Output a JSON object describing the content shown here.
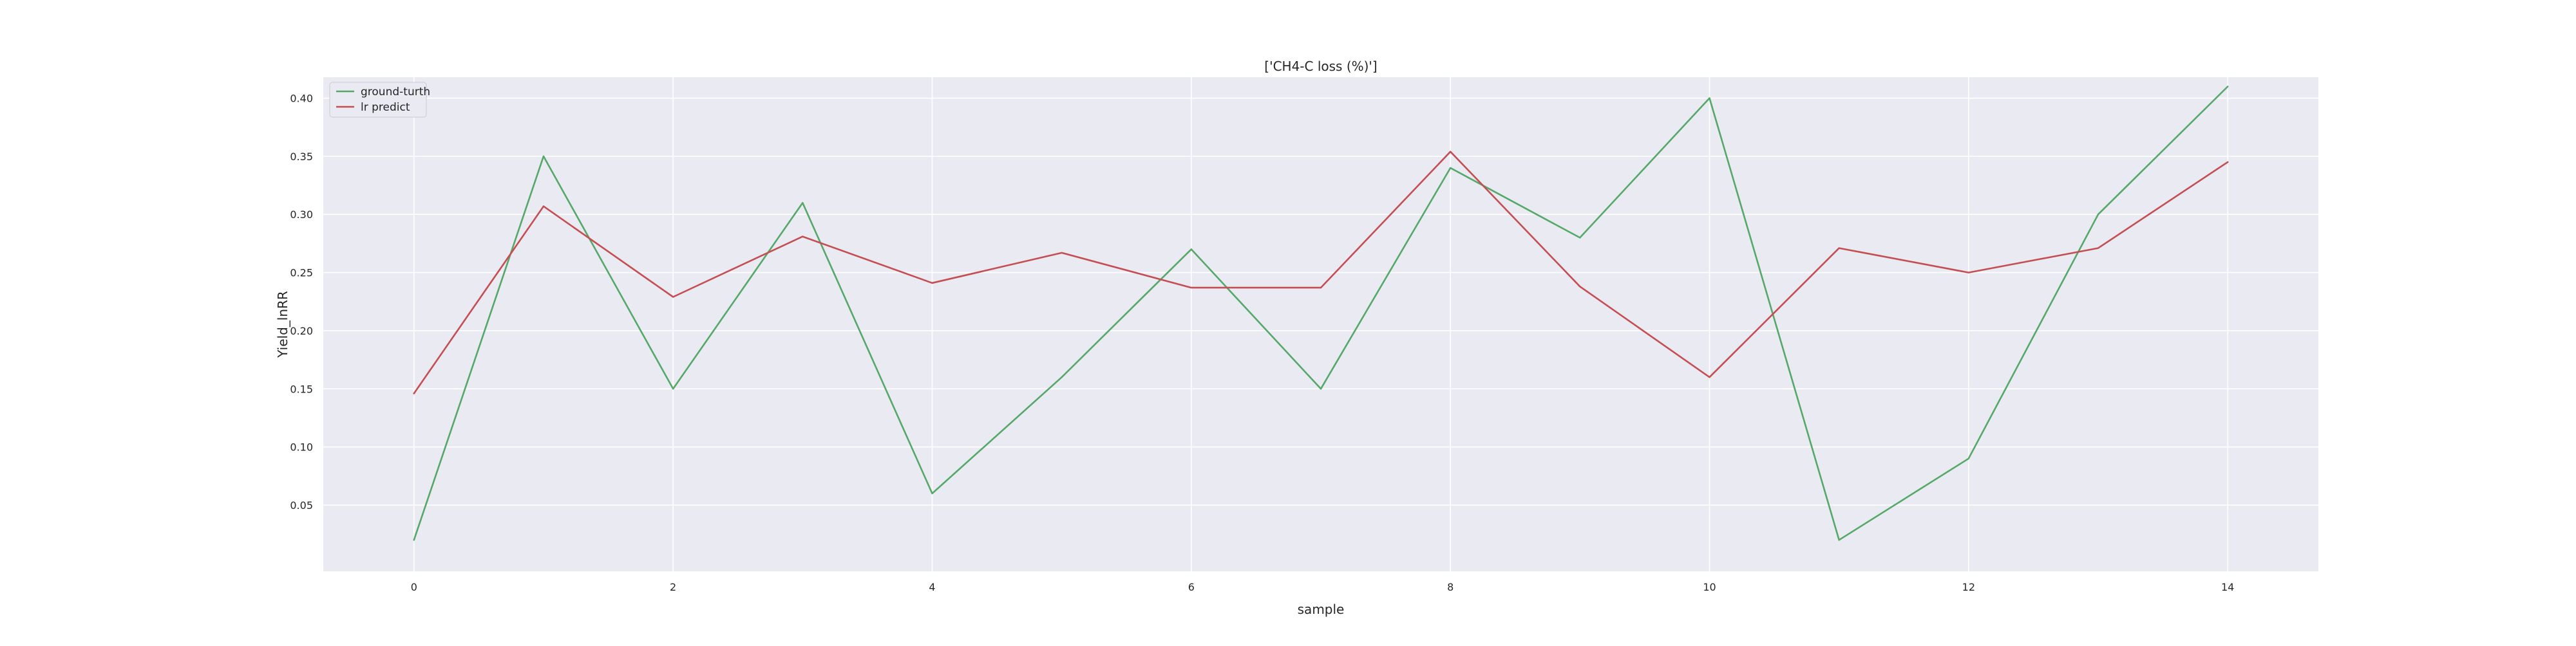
{
  "chart_data": {
    "type": "line",
    "title": "['CH4-C loss (%)']",
    "xlabel": "sample",
    "ylabel": "Yield_lnRR",
    "xlim": [
      -0.7,
      14.7
    ],
    "ylim": [
      -0.007,
      0.418
    ],
    "xticks": [
      0,
      2,
      4,
      6,
      8,
      10,
      12,
      14
    ],
    "yticks": [
      0.05,
      0.1,
      0.15,
      0.2,
      0.25,
      0.3,
      0.35,
      0.4
    ],
    "grid": true,
    "legend_position": "top-left",
    "x": [
      0,
      1,
      2,
      3,
      4,
      5,
      6,
      7,
      8,
      9,
      10,
      11,
      12,
      13,
      14
    ],
    "series": [
      {
        "name": "ground-turth",
        "color": "#55a868",
        "values": [
          0.02,
          0.35,
          0.15,
          0.31,
          0.06,
          0.16,
          0.27,
          0.15,
          0.34,
          0.28,
          0.4,
          0.02,
          0.09,
          0.3,
          0.41
        ]
      },
      {
        "name": "lr predict",
        "color": "#c44e52",
        "values": [
          0.146,
          0.307,
          0.229,
          0.281,
          0.241,
          0.267,
          0.237,
          0.237,
          0.354,
          0.238,
          0.16,
          0.271,
          0.25,
          0.271,
          0.345
        ]
      }
    ],
    "background_color": "#eaeaf2",
    "grid_color": "#ffffff"
  }
}
